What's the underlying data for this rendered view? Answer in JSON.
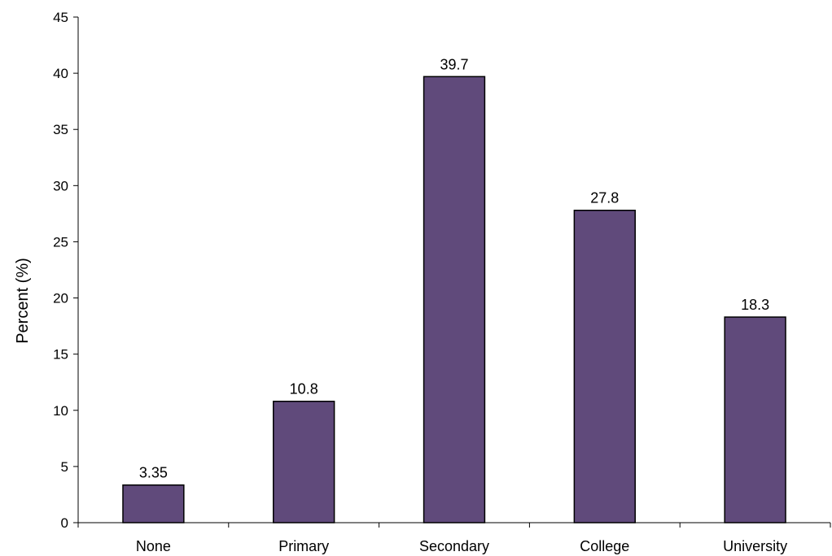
{
  "chart_data": {
    "type": "bar",
    "categories": [
      "None",
      "Primary",
      "Secondary",
      "College",
      "University"
    ],
    "values": [
      3.35,
      10.8,
      39.7,
      27.8,
      18.3
    ],
    "value_labels": [
      "3.35",
      "10.8",
      "39.7",
      "27.8",
      "18.3"
    ],
    "title": "",
    "xlabel": "",
    "ylabel": "Percent (%)",
    "ylim": [
      0,
      45
    ],
    "yticks": [
      0,
      5,
      10,
      15,
      20,
      25,
      30,
      35,
      40,
      45
    ],
    "grid": false,
    "legend": "none",
    "bar_color": "#604a7b",
    "bar_edge_color": "#000000"
  }
}
